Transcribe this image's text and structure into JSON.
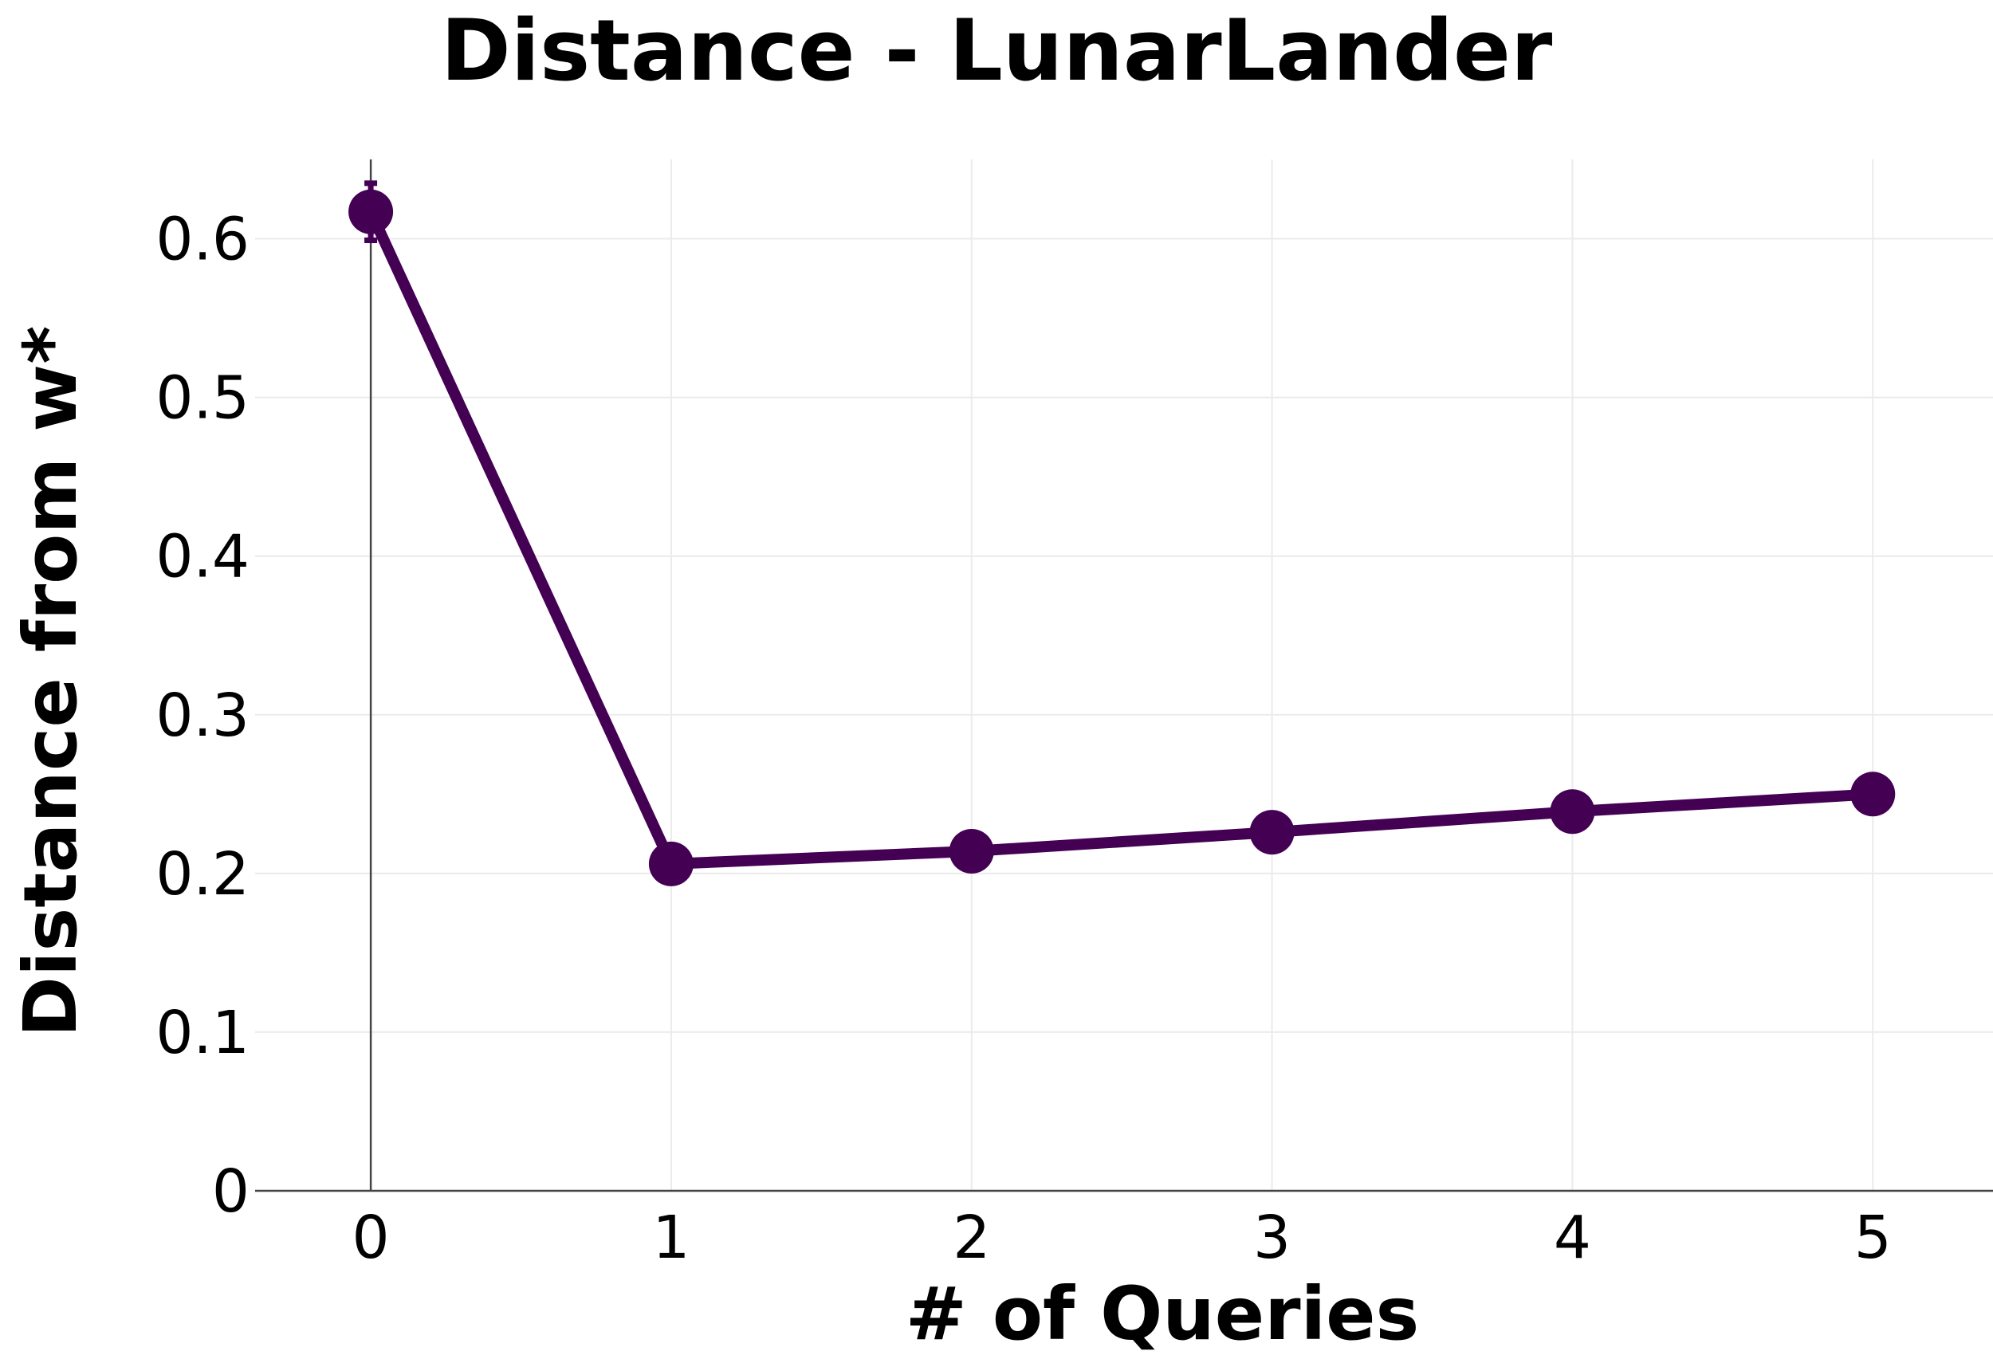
{
  "chart_data": {
    "type": "line",
    "title": "Distance - LunarLander",
    "xlabel": "# of Queries",
    "ylabel": "Distance from w*",
    "x": [
      0,
      1,
      2,
      3,
      4,
      5
    ],
    "series": [
      {
        "values": [
          0.617,
          0.206,
          0.214,
          0.226,
          0.239,
          0.25
        ],
        "error": [
          0.018,
          0.005,
          0.005,
          0.005,
          0.005,
          0.005
        ],
        "color": "#440154"
      }
    ],
    "xlim": [
      -0.385,
      5.4
    ],
    "ylim": [
      0,
      0.65
    ],
    "xticks": [
      0,
      1,
      2,
      3,
      4,
      5
    ],
    "yticks": [
      0,
      0.1,
      0.2,
      0.3,
      0.4,
      0.5,
      0.6
    ],
    "xtick_labels": [
      "0",
      "1",
      "2",
      "3",
      "4",
      "5"
    ],
    "ytick_labels": [
      "0",
      "0.1",
      "0.2",
      "0.3",
      "0.4",
      "0.5",
      "0.6"
    ],
    "grid": true,
    "legend": "none"
  }
}
